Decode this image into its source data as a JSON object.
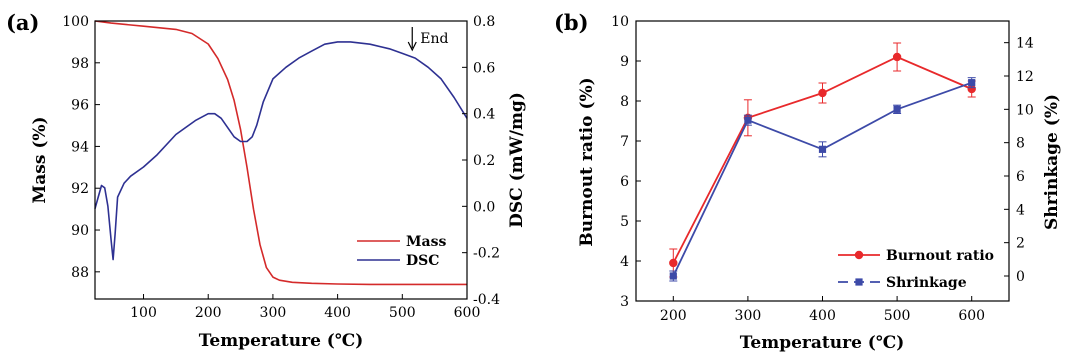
{
  "chart_data": [
    {
      "panel_label": "(a)",
      "type": "line",
      "xlabel": "Temperature (℃)",
      "ylabel": "Mass (%)",
      "y2label": "DSC (mW/mg)",
      "xlim": [
        25,
        600
      ],
      "ylim": [
        86.7,
        100
      ],
      "y2lim": [
        -0.4,
        0.8
      ],
      "xticks": [
        "100",
        "200",
        "300",
        "400",
        "500",
        "600"
      ],
      "yticks": [
        "88",
        "90",
        "92",
        "94",
        "96",
        "98",
        "100"
      ],
      "y2ticks": [
        "-0.4",
        "-0.2",
        "0.0",
        "0.2",
        "0.4",
        "0.6",
        "0.8"
      ],
      "annotation": "End",
      "annotation_x": 520,
      "legend_position": "bottom-right",
      "series": [
        {
          "name": "Mass",
          "axis": "left",
          "color": "#d42a2a",
          "x": [
            25,
            50,
            100,
            150,
            175,
            200,
            215,
            230,
            240,
            250,
            260,
            270,
            280,
            290,
            300,
            310,
            330,
            360,
            400,
            450,
            500,
            600
          ],
          "y": [
            100,
            99.9,
            99.75,
            99.6,
            99.4,
            98.9,
            98.2,
            97.2,
            96.2,
            94.8,
            93.0,
            91.0,
            89.3,
            88.2,
            87.75,
            87.6,
            87.5,
            87.45,
            87.42,
            87.4,
            87.4,
            87.4
          ]
        },
        {
          "name": "DSC",
          "axis": "right",
          "color": "#2e3192",
          "x": [
            25,
            30,
            35,
            40,
            45,
            50,
            53,
            56,
            60,
            70,
            80,
            100,
            120,
            150,
            180,
            200,
            210,
            220,
            240,
            250,
            260,
            268,
            275,
            285,
            300,
            320,
            340,
            360,
            380,
            400,
            420,
            450,
            480,
            500,
            520,
            540,
            560,
            580,
            600
          ],
          "y": [
            -0.01,
            0.04,
            0.09,
            0.08,
            0.0,
            -0.15,
            -0.23,
            -0.12,
            0.04,
            0.1,
            0.13,
            0.17,
            0.22,
            0.31,
            0.37,
            0.4,
            0.4,
            0.38,
            0.3,
            0.28,
            0.28,
            0.3,
            0.35,
            0.45,
            0.55,
            0.6,
            0.64,
            0.67,
            0.7,
            0.71,
            0.71,
            0.7,
            0.68,
            0.66,
            0.64,
            0.6,
            0.55,
            0.47,
            0.38
          ]
        }
      ]
    },
    {
      "panel_label": "(b)",
      "type": "line",
      "xlabel": "Temperature (℃)",
      "ylabel": "Burnout ratio (%)",
      "y2label": "Shrinkage (%)",
      "xlim": [
        150,
        650
      ],
      "ylim": [
        3,
        10
      ],
      "y2lim": [
        -1.5,
        15.3
      ],
      "xticks": [
        "200",
        "300",
        "400",
        "500",
        "600"
      ],
      "yticks": [
        "3",
        "4",
        "5",
        "6",
        "7",
        "8",
        "9",
        "10"
      ],
      "y2ticks": [
        "0",
        "2",
        "4",
        "6",
        "8",
        "10",
        "12",
        "14"
      ],
      "legend_position": "bottom-right",
      "series": [
        {
          "name": "Burnout ratio",
          "axis": "left",
          "color": "#e8292b",
          "marker": "circle",
          "x": [
            200,
            300,
            400,
            500,
            600
          ],
          "y": [
            3.95,
            7.58,
            8.2,
            9.1,
            8.3
          ],
          "error": [
            0.35,
            0.45,
            0.25,
            0.35,
            0.2
          ]
        },
        {
          "name": "Shrinkage",
          "axis": "right",
          "color": "#3d4aa8",
          "marker": "square",
          "x": [
            200,
            300,
            400,
            500,
            600
          ],
          "y": [
            0.0,
            9.35,
            7.6,
            10.0,
            11.6
          ],
          "error": [
            0.3,
            0.3,
            0.45,
            0.25,
            0.3
          ]
        }
      ]
    }
  ]
}
